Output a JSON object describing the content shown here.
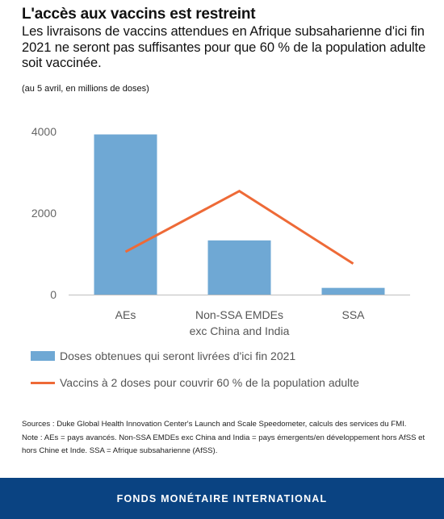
{
  "header": {
    "title": "L'accès aux vaccins est restreint",
    "subtitle": "Les livraisons de vaccins attendues en Afrique subsaharienne d'ici fin 2021 ne seront pas suffisantes pour que 60 % de la population adulte soit vaccinée.",
    "unit_note": "(au 5 avril, en millions de doses)"
  },
  "chart_data": {
    "type": "bar",
    "categories": [
      [
        "AEs"
      ],
      [
        "Non-SSA EMDEs",
        "exc China and India"
      ],
      [
        "SSA"
      ]
    ],
    "ylim": [
      0,
      4000
    ],
    "yticks": [
      0,
      2000,
      4000
    ],
    "ytick_labels": [
      "0",
      "2000",
      "4000"
    ],
    "grid": false,
    "legend_position": "bottom",
    "series": [
      {
        "name": "Doses obtenues qui seront livrées d'ici fin 2021",
        "kind": "bar",
        "color": "#6fa8d4",
        "values": [
          3930,
          1330,
          165
        ]
      },
      {
        "name": "Vaccins à 2 doses pour couvrir 60 % de la population adulte",
        "kind": "line",
        "color": "#ee6a37",
        "values": [
          1050,
          2540,
          760
        ]
      }
    ]
  },
  "notes": {
    "sources": "Sources : Duke Global Health Innovation Center's Launch and Scale Speedometer, calculs des services du FMI.",
    "note_line1": "Note : AEs = pays avancés. Non-SSA EMDEs exc China and India = pays émergents/en développement hors AfSS et",
    "note_line2": "hors Chine et Inde. SSA = Afrique subsaharienne (AfSS)."
  },
  "footer": {
    "label": "FONDS MONÉTAIRE INTERNATIONAL",
    "background": "#0a4382"
  }
}
